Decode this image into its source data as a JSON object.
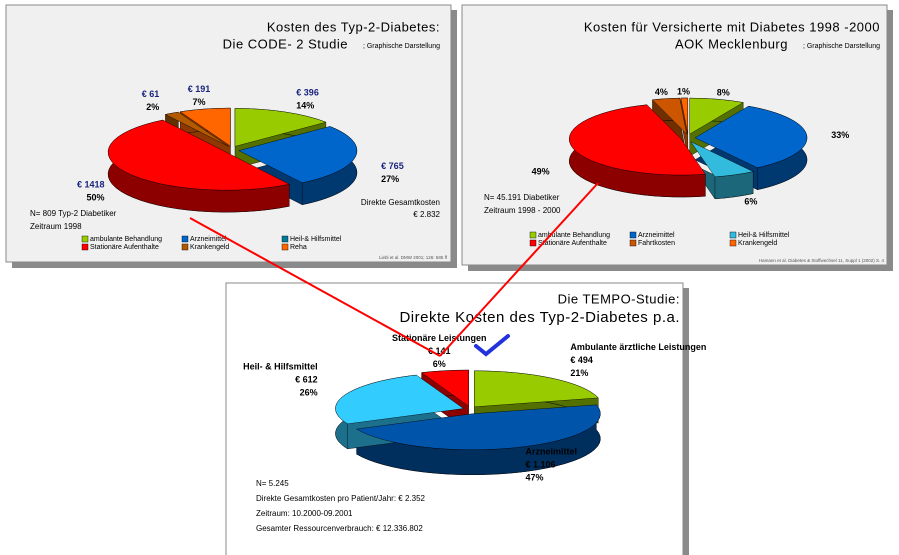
{
  "chart_data": [
    {
      "type": "pie",
      "title": "Kosten des Typ-2-Diabetes:",
      "title2": "Die CODE- 2 Studie",
      "subtitle": "; Graphische Darstellung",
      "categories": [
        "ambulante Behandlung",
        "Arzneimittel",
        "Heil-& Hilfsmittel",
        "Stationäre Aufenthalte",
        "Krankengeld",
        "Reha"
      ],
      "colors": [
        "#99cc00",
        "#0066cc",
        "#007a99",
        "#ff0000",
        "#b35900",
        "#ff6600"
      ],
      "values": [
        14,
        27,
        null,
        50,
        2,
        7
      ],
      "value_labels": [
        "14%",
        "27%",
        null,
        "50%",
        "2%",
        "7%"
      ],
      "amounts": [
        396,
        765,
        null,
        1418,
        61,
        191
      ],
      "amount_labels": [
        "€ 396",
        "€ 765",
        null,
        "€ 1418",
        "€ 61",
        "€ 191"
      ],
      "notes": [
        "N= 809 Typ-2 Diabetiker",
        "Zeitraum 1998"
      ],
      "notes_right": [
        "Direkte Gesamtkosten",
        "€ 2.832"
      ],
      "legend": true,
      "source": "Liebl et al. DMW 2001; 126: 585 ff"
    },
    {
      "type": "pie",
      "title": "Kosten für Versicherte mit Diabetes 1998 -2000",
      "title2": "AOK Mecklenburg",
      "subtitle": "; Graphische Darstellung",
      "categories": [
        "ambulante Behandlung",
        "Arzneimittel",
        "Heil-& Hilfsmittel",
        "Stationäre Aufenthalte",
        "Fahrtkosten",
        "Krankengeld"
      ],
      "colors": [
        "#99cc00",
        "#0066cc",
        "#33bbdd",
        "#ff0000",
        "#cc5500",
        "#ff6600"
      ],
      "values": [
        8,
        33,
        6,
        49,
        4,
        1
      ],
      "value_labels": [
        "8%",
        "33%",
        "6%",
        "49%",
        "4%",
        "1%"
      ],
      "notes": [
        "N= 45.191 Diabetiker",
        "Zeitraum 1998 - 2000"
      ],
      "legend": true,
      "source": "Hamann et al. Diabetes & Stoffwechsel 11, Suppl 1 (2002) S. 4"
    },
    {
      "type": "pie",
      "title": "Die TEMPO-Studie:",
      "subtitle": "Direkte Kosten des Typ-2-Diabetes p.a.",
      "categories": [
        "Ambulante ärztliche Leistungen",
        "Arzneimittel",
        "Heil- & Hilfsmittel",
        "Stationäre Leistungen"
      ],
      "colors": [
        "#99cc00",
        "#0055aa",
        "#33ccff",
        "#ff0000"
      ],
      "values": [
        21,
        47,
        26,
        6
      ],
      "value_labels": [
        "21%",
        "47%",
        "26%",
        "6%"
      ],
      "amounts": [
        494,
        1106,
        612,
        141
      ],
      "amount_labels": [
        "€ 494",
        "€ 1.106",
        "€ 612",
        "€ 141"
      ],
      "notes": [
        "N= 5.245",
        "Direkte Gesamtkosten pro Patient/Jahr: € 2.352",
        "Zeitraum: 10.2000-09.2001",
        "Gesamter Ressourcenverbrauch: € 12.336.802"
      ],
      "legend": false
    }
  ]
}
